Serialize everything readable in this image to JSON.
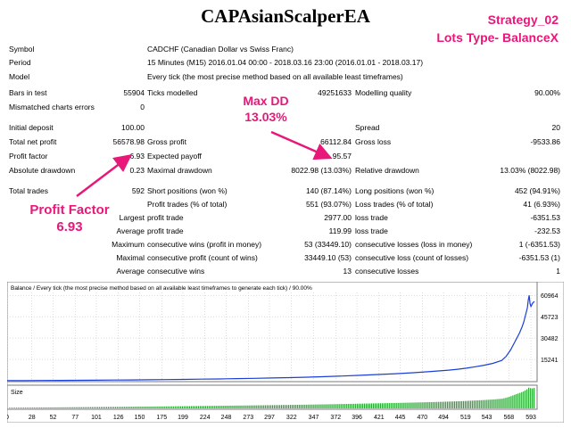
{
  "title": "CAPAsianScalperEA",
  "annotations": {
    "strategy": "Strategy_02",
    "lots_type": "Lots Type- BalanceX",
    "max_dd_label": "Max DD",
    "max_dd_value": "13.03%",
    "pf_label": "Profit Factor",
    "pf_value": "6.93"
  },
  "info": {
    "symbol_label": "Symbol",
    "symbol_value": "CADCHF (Canadian Dollar vs Swiss Franc)",
    "period_label": "Period",
    "period_value": "15 Minutes (M15) 2016.01.04 00:00 - 2018.03.16 23:00 (2016.01.01 - 2018.03.17)",
    "model_label": "Model",
    "model_value": "Every tick (the most precise method based on all available least timeframes)",
    "bars_label": "Bars in test",
    "bars_value": "55904",
    "ticks_label": "Ticks modelled",
    "ticks_value": "49251633",
    "quality_label": "Modelling quality",
    "quality_value": "90.00%",
    "mismatch_label": "Mismatched charts errors",
    "mismatch_value": "0"
  },
  "stats": {
    "initial_deposit_label": "Initial deposit",
    "initial_deposit": "100.00",
    "spread_label": "Spread",
    "spread": "20",
    "net_profit_label": "Total net profit",
    "net_profit": "56578.98",
    "gross_profit_label": "Gross profit",
    "gross_profit": "66112.84",
    "gross_loss_label": "Gross loss",
    "gross_loss": "-9533.86",
    "profit_factor_label": "Profit factor",
    "profit_factor": "6.93",
    "expected_payoff_label": "Expected payoff",
    "expected_payoff": "95.57",
    "abs_dd_label": "Absolute drawdown",
    "abs_dd": "0.23",
    "max_dd_label": "Maximal drawdown",
    "max_dd": "8022.98 (13.03%)",
    "rel_dd_label": "Relative drawdown",
    "rel_dd": "13.03% (8022.98)",
    "total_trades_label": "Total trades",
    "total_trades": "592",
    "short_label": "Short positions (won %)",
    "short": "140 (87.14%)",
    "long_label": "Long positions (won %)",
    "long": "452 (94.91%)",
    "profit_trades_label": "Profit trades (% of total)",
    "profit_trades": "551 (93.07%)",
    "loss_trades_label": "Loss trades (% of total)",
    "loss_trades": "41 (6.93%)",
    "largest_label": "Largest",
    "largest_profit_label": "profit trade",
    "largest_profit": "2977.00",
    "largest_loss_label": "loss trade",
    "largest_loss": "-6351.53",
    "average_label": "Average",
    "average_profit_label": "profit trade",
    "average_profit": "119.99",
    "average_loss_label": "loss trade",
    "average_loss": "-232.53",
    "maximum_label": "Maximum",
    "max_wins_label": "consecutive wins (profit in money)",
    "max_wins": "53 (33449.10)",
    "max_losses_label": "consecutive losses (loss in money)",
    "max_losses": "1 (-6351.53)",
    "maximal_label": "Maximal",
    "maximal_profit_label": "consecutive profit (count of wins)",
    "maximal_profit": "33449.10 (53)",
    "maximal_loss_label": "consecutive loss (count of losses)",
    "maximal_loss": "-6351.53 (1)",
    "avg_label": "Average",
    "avg_wins_label": "consecutive wins",
    "avg_wins": "13",
    "avg_losses_label": "consecutive losses",
    "avg_losses": "1"
  },
  "chart_data": {
    "type": "line",
    "title": "Balance / Every tick (the most precise method based on all available least timeframes to generate each tick) / 90.00%",
    "size_label": "Size",
    "xlabel": "",
    "ylabel": "",
    "x_ticks": [
      0,
      28,
      52,
      77,
      101,
      126,
      150,
      175,
      199,
      224,
      248,
      273,
      297,
      322,
      347,
      372,
      396,
      421,
      445,
      470,
      494,
      519,
      543,
      568,
      593
    ],
    "y_ticks": [
      15241,
      30482,
      45723,
      60964
    ],
    "xlim": [
      0,
      600
    ],
    "ylim": [
      0,
      63000
    ],
    "series": [
      {
        "values": [
          [
            0,
            100
          ],
          [
            20,
            140
          ],
          [
            40,
            190
          ],
          [
            60,
            250
          ],
          [
            80,
            320
          ],
          [
            100,
            400
          ],
          [
            120,
            480
          ],
          [
            140,
            580
          ],
          [
            160,
            690
          ],
          [
            180,
            820
          ],
          [
            200,
            960
          ],
          [
            220,
            1120
          ],
          [
            240,
            1300
          ],
          [
            260,
            1500
          ],
          [
            280,
            1720
          ],
          [
            300,
            1960
          ],
          [
            320,
            2220
          ],
          [
            340,
            2550
          ],
          [
            360,
            2950
          ],
          [
            380,
            3400
          ],
          [
            400,
            3900
          ],
          [
            420,
            4450
          ],
          [
            440,
            5050
          ],
          [
            460,
            5750
          ],
          [
            480,
            6600
          ],
          [
            500,
            7600
          ],
          [
            510,
            8200
          ],
          [
            520,
            9000
          ],
          [
            530,
            10000
          ],
          [
            540,
            11100
          ],
          [
            550,
            12400
          ],
          [
            560,
            14500
          ],
          [
            565,
            17500
          ],
          [
            570,
            22000
          ],
          [
            575,
            28000
          ],
          [
            580,
            34000
          ],
          [
            583,
            38500
          ],
          [
            585,
            42000
          ],
          [
            587,
            47000
          ],
          [
            589,
            52000
          ],
          [
            590,
            57500
          ],
          [
            591,
            60964
          ],
          [
            592,
            55000
          ],
          [
            593,
            53000
          ],
          [
            595,
            55500
          ],
          [
            597,
            56578
          ]
        ]
      }
    ],
    "colors": {
      "line": "#1a3fd8",
      "volume": "#1fa72a",
      "grid": "#b8b8b8"
    }
  }
}
